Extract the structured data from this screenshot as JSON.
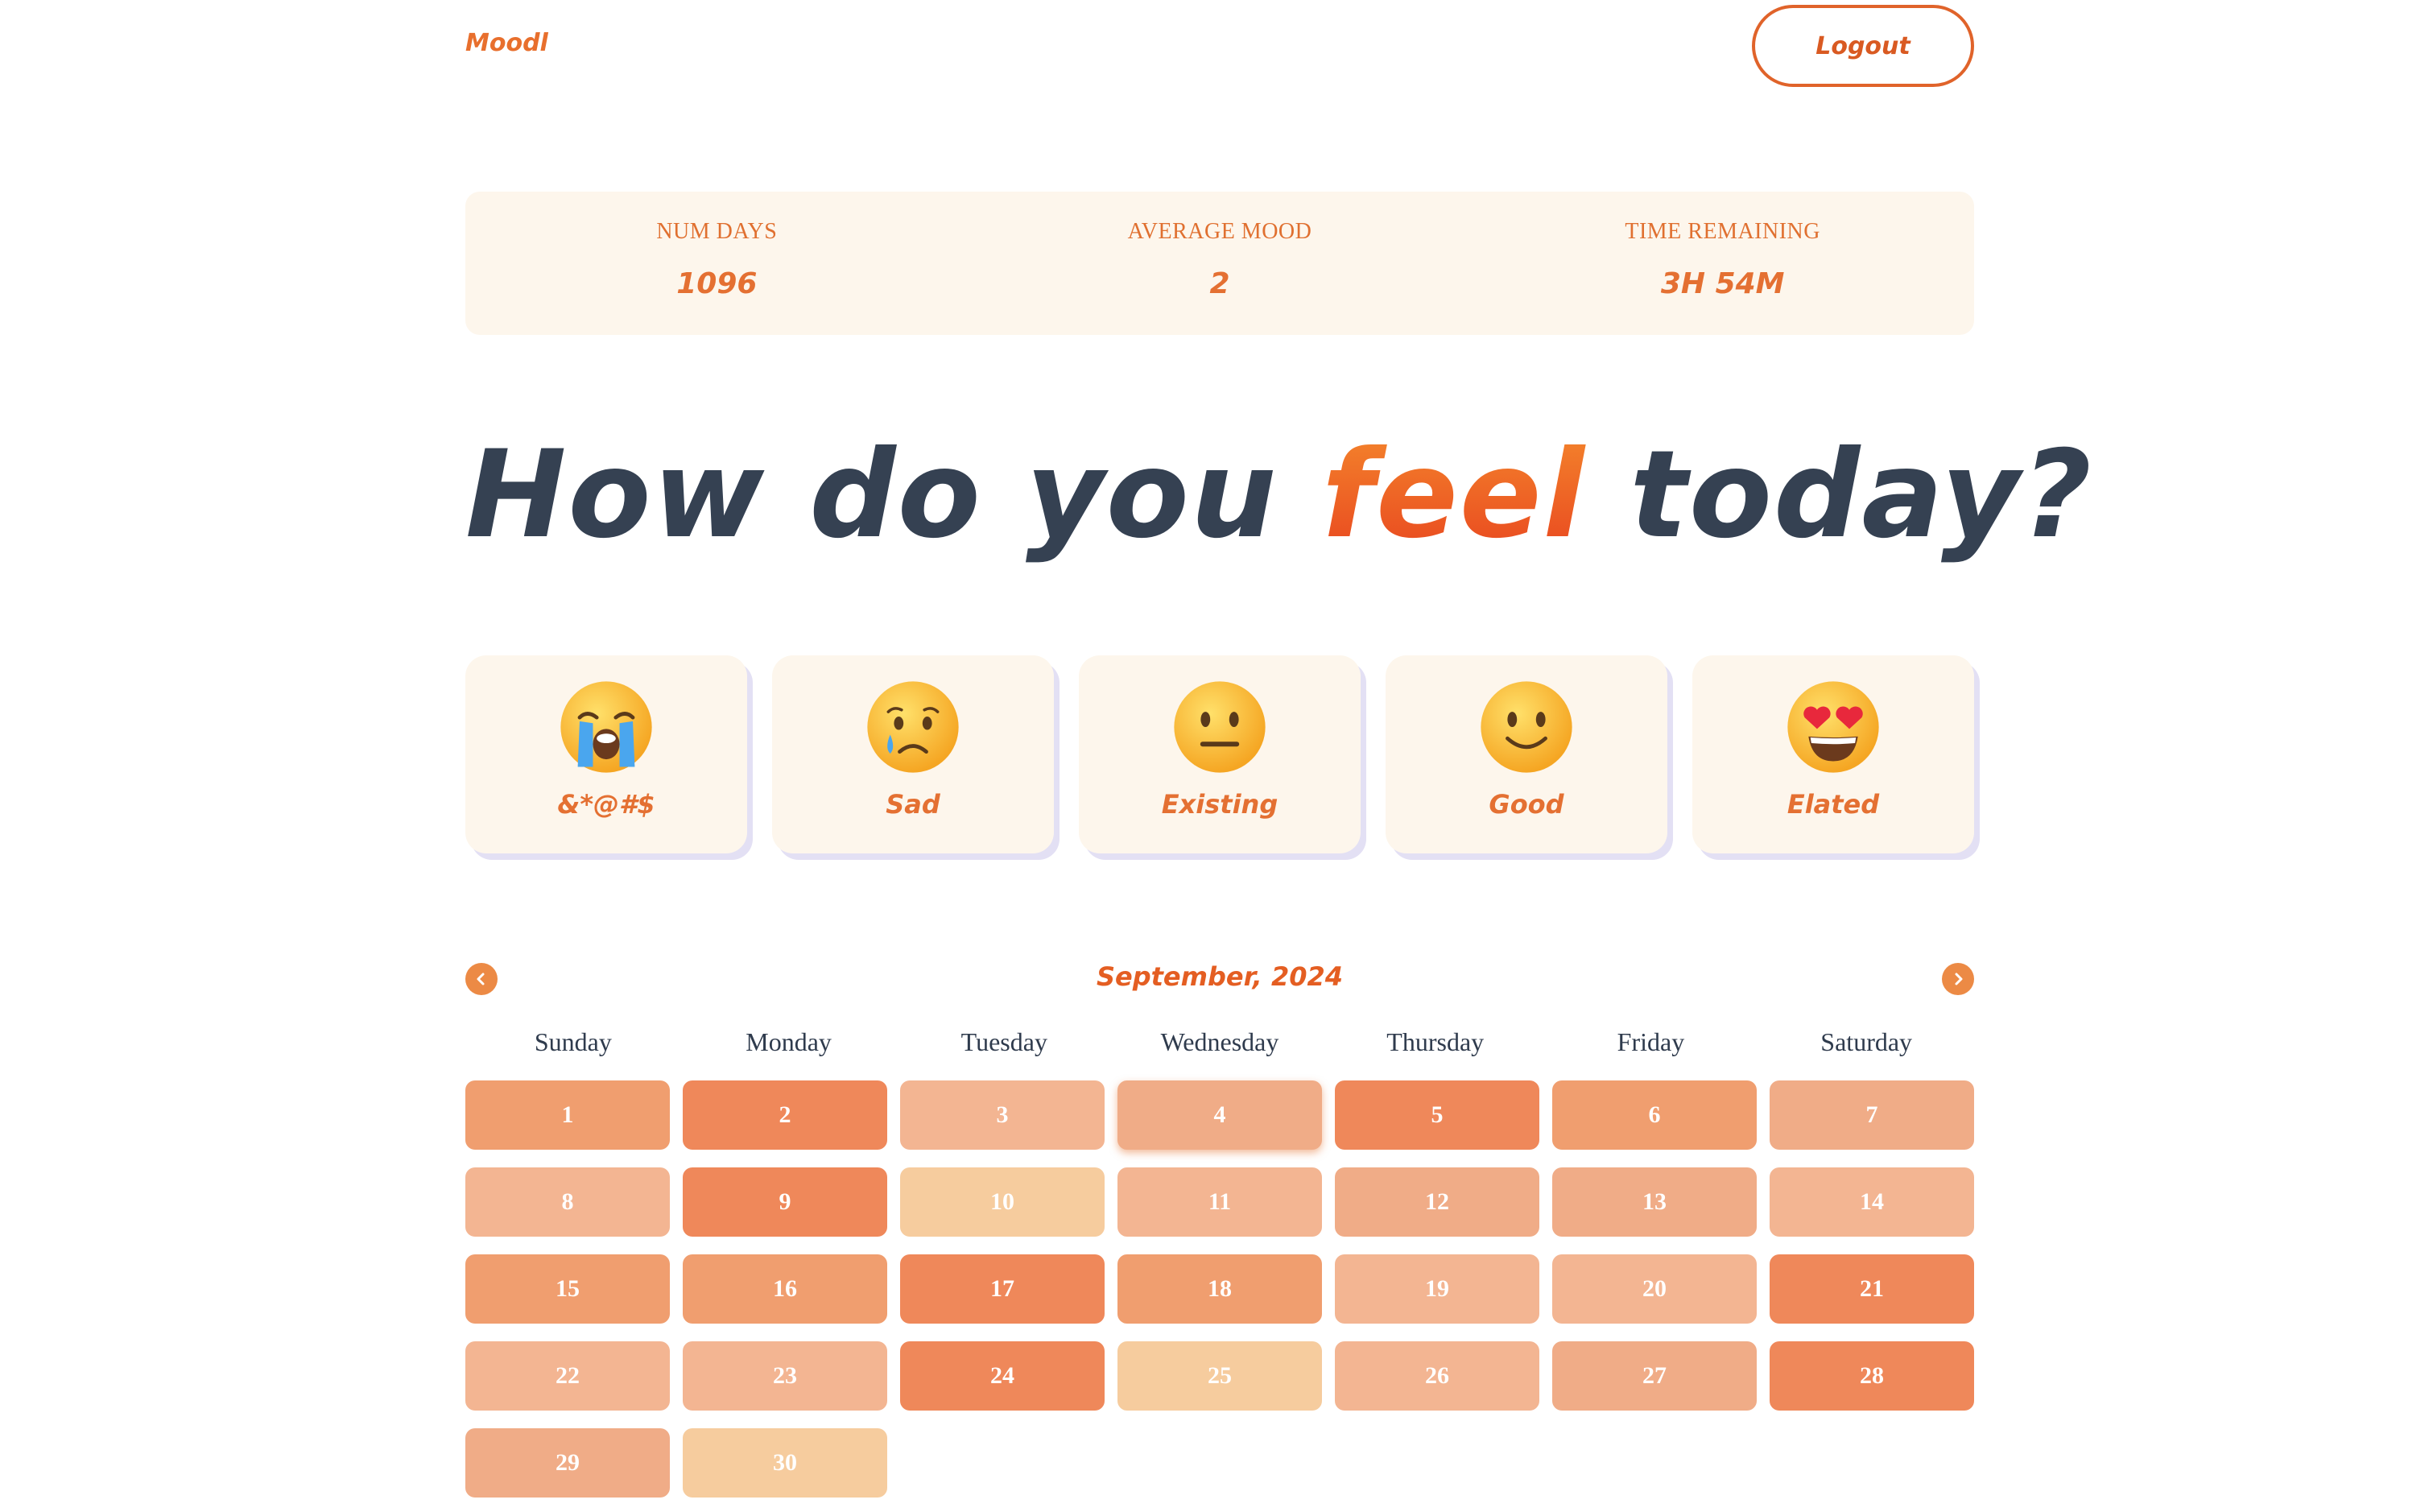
{
  "header": {
    "brand": "Moodl",
    "logout_label": "Logout"
  },
  "stats": [
    {
      "label": "NUM DAYS",
      "value": "1096"
    },
    {
      "label": "AVERAGE MOOD",
      "value": "2"
    },
    {
      "label": "TIME REMAINING",
      "value": "3H 54M"
    }
  ],
  "heading": {
    "before": "How do you ",
    "accent": "feel",
    "after": " today?"
  },
  "moods": [
    {
      "label": "&*@#$",
      "icon": "loudly-crying-face-icon"
    },
    {
      "label": "Sad",
      "icon": "crying-face-icon"
    },
    {
      "label": "Existing",
      "icon": "neutral-face-icon"
    },
    {
      "label": "Good",
      "icon": "slightly-smiling-face-icon"
    },
    {
      "label": "Elated",
      "icon": "heart-eyes-face-icon"
    }
  ],
  "calendar": {
    "month_label": "September, 2024",
    "weekdays": [
      "Sunday",
      "Monday",
      "Tuesday",
      "Wednesday",
      "Thursday",
      "Friday",
      "Saturday"
    ],
    "today": 4,
    "days": [
      {
        "day": "1",
        "mood": 4
      },
      {
        "day": "2",
        "mood": 5
      },
      {
        "day": "3",
        "mood": 2
      },
      {
        "day": "4",
        "mood": 3
      },
      {
        "day": "5",
        "mood": 5
      },
      {
        "day": "6",
        "mood": 4
      },
      {
        "day": "7",
        "mood": 3
      },
      {
        "day": "8",
        "mood": 2
      },
      {
        "day": "9",
        "mood": 5
      },
      {
        "day": "10",
        "mood": 1
      },
      {
        "day": "11",
        "mood": 2
      },
      {
        "day": "12",
        "mood": 3
      },
      {
        "day": "13",
        "mood": 3
      },
      {
        "day": "14",
        "mood": 2
      },
      {
        "day": "15",
        "mood": 4
      },
      {
        "day": "16",
        "mood": 4
      },
      {
        "day": "17",
        "mood": 5
      },
      {
        "day": "18",
        "mood": 4
      },
      {
        "day": "19",
        "mood": 2
      },
      {
        "day": "20",
        "mood": 2
      },
      {
        "day": "21",
        "mood": 5
      },
      {
        "day": "22",
        "mood": 2
      },
      {
        "day": "23",
        "mood": 2
      },
      {
        "day": "24",
        "mood": 5
      },
      {
        "day": "25",
        "mood": 1
      },
      {
        "day": "26",
        "mood": 2
      },
      {
        "day": "27",
        "mood": 3
      },
      {
        "day": "28",
        "mood": 5
      },
      {
        "day": "29",
        "mood": 3
      },
      {
        "day": "30",
        "mood": 1
      }
    ],
    "prev_icon": "chevron-left-icon",
    "next_icon": "chevron-right-icon"
  }
}
